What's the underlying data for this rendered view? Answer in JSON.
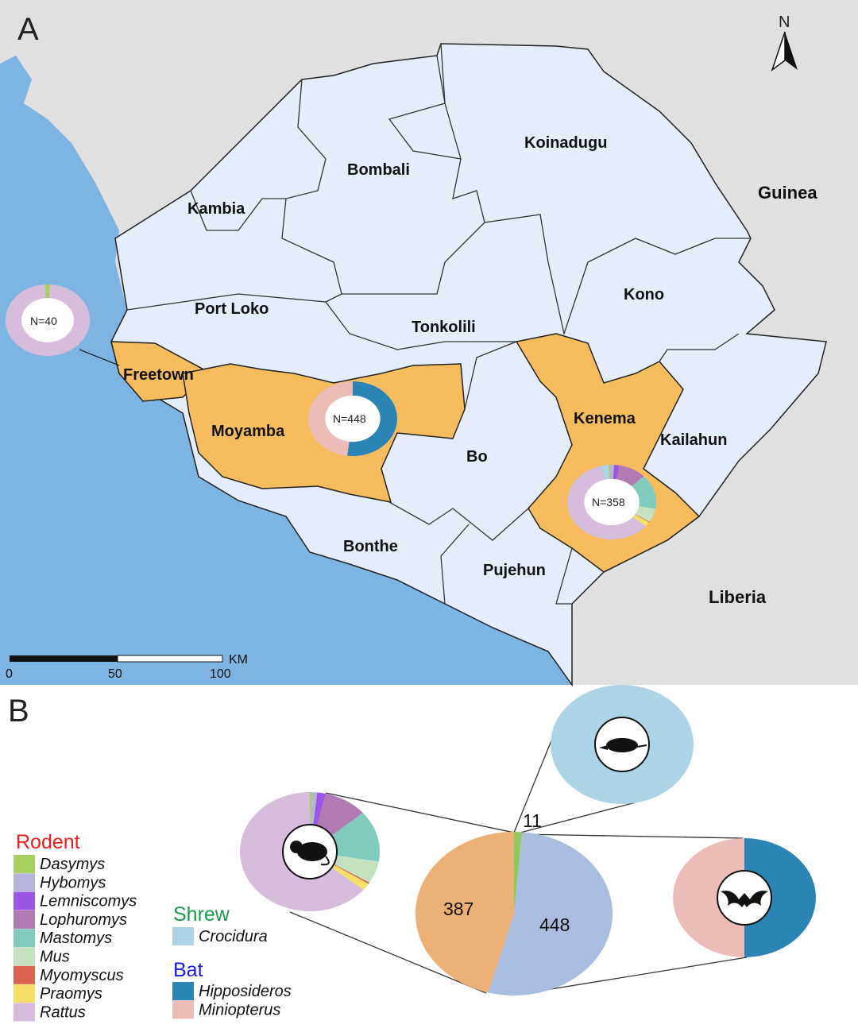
{
  "panels": {
    "a": "A",
    "b": "B"
  },
  "north_label": "N",
  "countries": {
    "guinea": "Guinea",
    "liberia": "Liberia"
  },
  "districts": {
    "koinadugu": "Koinadugu",
    "bombali": "Bombali",
    "kambia": "Kambia",
    "port_loko": "Port Loko",
    "tonkolili": "Tonkolili",
    "kono": "Kono",
    "freetown": "Freetown",
    "moyamba": "Moyamba",
    "bo": "Bo",
    "kenema": "Kenema",
    "kailahun": "Kailahun",
    "bonthe": "Bonthe",
    "pujehun": "Pujehun"
  },
  "scale_bar": {
    "unit": "KM",
    "ticks": [
      "0",
      "50",
      "100"
    ]
  },
  "colors": {
    "sea": "#7db4e2",
    "land_other": "#e0e0e0",
    "sierra_leone": "#e4edf9",
    "sampled_district": "#f6bc5e",
    "rodent_title": "#ee1c1c",
    "shrew_title": "#1a9a4a",
    "bat_title": "#1a1aee",
    "rodent_total": "#a9bde0",
    "bat_total": "#ecb076",
    "shrew_total": "#8ec95d"
  },
  "legend": {
    "rodent": {
      "title": "Rodent",
      "items": [
        {
          "label": "Dasymys",
          "color": "#a6d05f"
        },
        {
          "label": "Hybomys",
          "color": "#b7b4dc"
        },
        {
          "label": "Lemniscomys",
          "color": "#9b57e4"
        },
        {
          "label": "Lophuromys",
          "color": "#b27ab3"
        },
        {
          "label": "Mastomys",
          "color": "#80cbbb"
        },
        {
          "label": "Mus",
          "color": "#c5e2c0"
        },
        {
          "label": "Myomyscus",
          "color": "#d9634f"
        },
        {
          "label": "Praomys",
          "color": "#f4e067"
        },
        {
          "label": "Rattus",
          "color": "#d7bddc"
        }
      ]
    },
    "shrew": {
      "title": "Shrew",
      "items": [
        {
          "label": "Crocidura",
          "color": "#acd4e6"
        }
      ]
    },
    "bat": {
      "title": "Bat",
      "items": [
        {
          "label": "Hipposideros",
          "color": "#2c84b5"
        },
        {
          "label": "Miniopterus",
          "color": "#ecbcb8"
        }
      ]
    }
  },
  "map_pies": [
    {
      "label": "N=40",
      "slices": [
        {
          "genus": "Dasymys",
          "value": 0.02
        },
        {
          "genus": "Rattus",
          "value": 0.98
        }
      ]
    },
    {
      "label": "N=448",
      "slices": [
        {
          "genus": "Hipposideros",
          "value": 0.52
        },
        {
          "genus": "Miniopterus",
          "value": 0.48
        }
      ]
    },
    {
      "label": "N=358",
      "slices": [
        {
          "genus": "Crocidura",
          "value": 0.03
        },
        {
          "genus": "Dasymys",
          "value": 0.005
        },
        {
          "genus": "Hybomys",
          "value": 0.015
        },
        {
          "genus": "Lemniscomys",
          "value": 0.02
        },
        {
          "genus": "Lophuromys",
          "value": 0.1
        },
        {
          "genus": "Mastomys",
          "value": 0.15
        },
        {
          "genus": "Mus",
          "value": 0.06
        },
        {
          "genus": "Myomyscus",
          "value": 0.003
        },
        {
          "genus": "Praomys",
          "value": 0.02
        },
        {
          "genus": "Rattus",
          "value": 0.597
        }
      ]
    }
  ],
  "chart_data": {
    "type": "pie",
    "totals": {
      "categories": [
        "Shrew",
        "Rodent",
        "Bat"
      ],
      "values": [
        11,
        448,
        387
      ],
      "labels": [
        "11",
        "448",
        "387"
      ]
    },
    "rodent_breakdown": {
      "categories": [
        "Dasymys",
        "Hybomys",
        "Lemniscomys",
        "Lophuromys",
        "Mastomys",
        "Mus",
        "Myomyscus",
        "Praomys",
        "Rattus"
      ],
      "values": [
        0.005,
        0.012,
        0.02,
        0.1,
        0.14,
        0.06,
        0.004,
        0.02,
        0.639
      ]
    },
    "shrew_breakdown": {
      "categories": [
        "Crocidura"
      ],
      "values": [
        1.0
      ]
    },
    "bat_breakdown": {
      "categories": [
        "Hipposideros",
        "Miniopterus"
      ],
      "values": [
        0.5,
        0.5
      ]
    }
  }
}
